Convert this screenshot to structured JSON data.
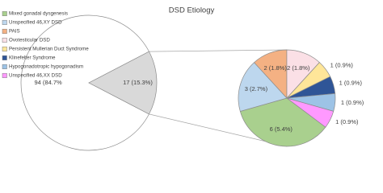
{
  "chart_data": {
    "type": "pie-of-pie",
    "title": "DSD Etiology",
    "main": {
      "values": [
        94,
        17
      ],
      "value_labels": [
        "94 (84.7%",
        "17 (15.3%)"
      ],
      "colors": [
        "#ffffff",
        "#d9d9d9"
      ]
    },
    "secondary": {
      "series": [
        {
          "name": "Mixed gonadal dysgenesis",
          "color": "#a9d08e",
          "value": 6,
          "value_label": "6 (5.4%)"
        },
        {
          "name": "Unspecified 46,XY DSD",
          "color": "#bdd7ee",
          "value": 3,
          "value_label": "3 (2.7%)"
        },
        {
          "name": "PAIS",
          "color": "#f4b183",
          "value": 2,
          "value_label": "2 (1.8%)"
        },
        {
          "name": "Ovotesticular DSD",
          "color": "#fbe0e6",
          "value": 2,
          "value_label": "2 (1.8%)"
        },
        {
          "name": "Persistent Mullerian Duct Syndrome",
          "color": "#ffe699",
          "value": 1,
          "value_label": "1 (0.9%)"
        },
        {
          "name": "Klinefelter Syndrome",
          "color": "#2f5597",
          "value": 1,
          "value_label": "1 (0.9%)"
        },
        {
          "name": "Hypogonadotropic hypogonadism",
          "color": "#9dc3e6",
          "value": 1,
          "value_label": "1 (0.9%)"
        },
        {
          "name": "Unspecified 46,XX DSD",
          "color": "#ff99ff",
          "value": 1,
          "value_label": "1 (0.9%)"
        }
      ]
    }
  }
}
